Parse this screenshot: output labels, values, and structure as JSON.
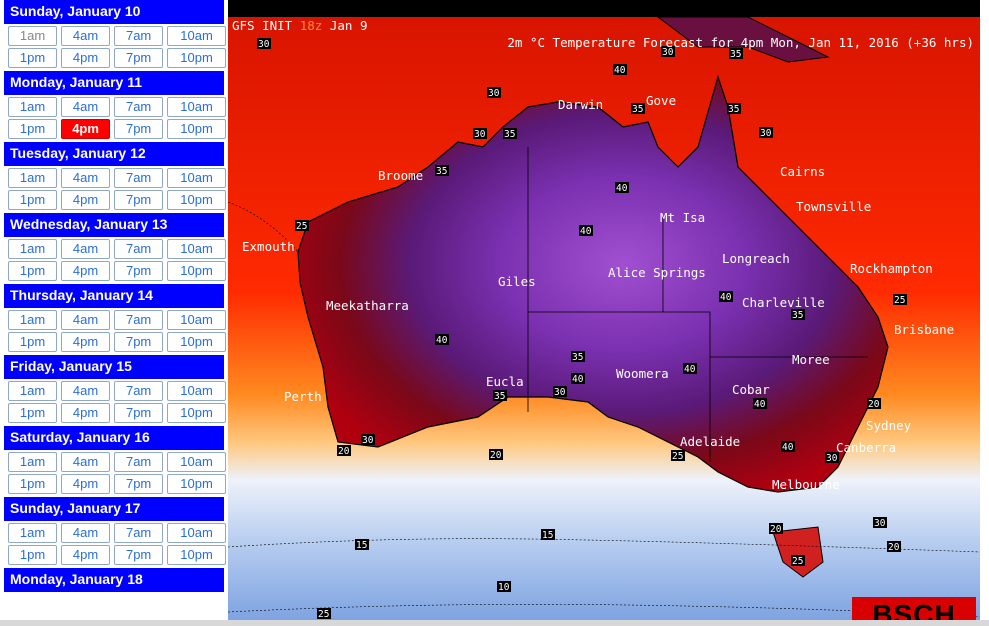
{
  "sidebar": {
    "days": [
      {
        "label": "Sunday, January 10",
        "times": [
          "1am",
          "4am",
          "7am",
          "10am",
          "1pm",
          "4pm",
          "7pm",
          "10pm"
        ],
        "dim": [
          0
        ],
        "active": -1
      },
      {
        "label": "Monday, January 11",
        "times": [
          "1am",
          "4am",
          "7am",
          "10am",
          "1pm",
          "4pm",
          "7pm",
          "10pm"
        ],
        "dim": [],
        "active": 5
      },
      {
        "label": "Tuesday, January 12",
        "times": [
          "1am",
          "4am",
          "7am",
          "10am",
          "1pm",
          "4pm",
          "7pm",
          "10pm"
        ],
        "dim": [],
        "active": -1
      },
      {
        "label": "Wednesday, January 13",
        "times": [
          "1am",
          "4am",
          "7am",
          "10am",
          "1pm",
          "4pm",
          "7pm",
          "10pm"
        ],
        "dim": [],
        "active": -1
      },
      {
        "label": "Thursday, January 14",
        "times": [
          "1am",
          "4am",
          "7am",
          "10am",
          "1pm",
          "4pm",
          "7pm",
          "10pm"
        ],
        "dim": [],
        "active": -1
      },
      {
        "label": "Friday, January 15",
        "times": [
          "1am",
          "4am",
          "7am",
          "10am",
          "1pm",
          "4pm",
          "7pm",
          "10pm"
        ],
        "dim": [],
        "active": -1
      },
      {
        "label": "Saturday, January 16",
        "times": [
          "1am",
          "4am",
          "7am",
          "10am",
          "1pm",
          "4pm",
          "7pm",
          "10pm"
        ],
        "dim": [],
        "active": -1
      },
      {
        "label": "Sunday, January 17",
        "times": [
          "1am",
          "4am",
          "7am",
          "10am",
          "1pm",
          "4pm",
          "7pm",
          "10pm"
        ],
        "dim": [],
        "active": -1
      },
      {
        "label": "Monday, January 18",
        "times": [],
        "dim": [],
        "active": -1
      }
    ]
  },
  "map": {
    "title_left_prefix": "GFS INIT ",
    "title_left_run": "18z",
    "title_left_date": " Jan 9",
    "title_right": "2m °C Temperature Forecast for 4pm Mon, Jan 11, 2016 (+36 hrs)",
    "brand": "BSCH",
    "cities": [
      "Darwin",
      "Gove",
      "Broome",
      "Cairns",
      "Townsville",
      "Mt Isa",
      "Exmouth",
      "Longreach",
      "Rockhampton",
      "Giles",
      "Alice Springs",
      "Meekatharra",
      "Charleville",
      "Brisbane",
      "Moree",
      "Woomera",
      "Eucla",
      "Cobar",
      "Perth",
      "Adelaide",
      "Sydney",
      "Canberra",
      "Melbourne"
    ],
    "isotherms": [
      "30",
      "35",
      "25",
      "30",
      "35",
      "30",
      "35",
      "30",
      "40",
      "35",
      "40",
      "40",
      "25",
      "35",
      "40",
      "35",
      "40",
      "40",
      "40",
      "35",
      "30",
      "40",
      "25",
      "30",
      "20",
      "30",
      "20",
      "30",
      "25",
      "20",
      "30",
      "35",
      "40",
      "20",
      "20",
      "15",
      "15",
      "10",
      "25"
    ],
    "colors": {
      "cool": "#f0f4fb",
      "mild": "#ffb347",
      "warm": "#ff2a00",
      "hot": "#8a0a14",
      "very_hot": "#5a1a7a",
      "extreme": "#9a4ec8"
    }
  }
}
